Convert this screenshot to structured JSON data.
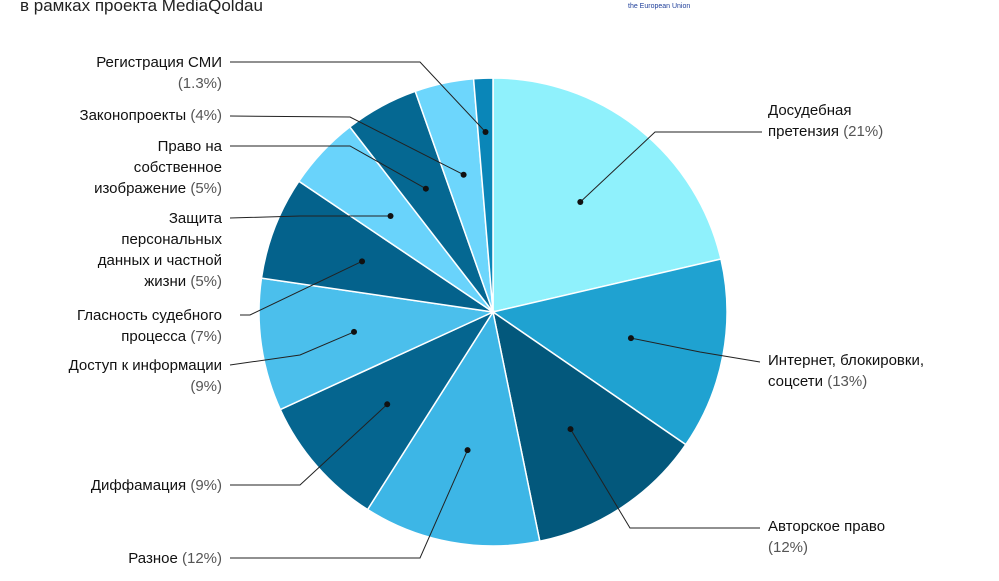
{
  "subtitle": "в рамках проекта MediaQoldau",
  "logo_text": "the European Union",
  "chart_data": {
    "type": "pie",
    "categories": [
      "Досудебная претензия",
      "Интернет, блокировки, соцсети",
      "Авторское право",
      "Разное",
      "Диффамация",
      "Доступ к информации",
      "Гласность судебного процесса",
      "Защита персональных данных и частной жизни",
      "Право на собственное изображение",
      "Законопроекты",
      "Регистрация СМИ"
    ],
    "values": [
      21,
      13,
      12,
      12,
      9,
      9,
      7,
      5,
      5,
      4,
      1.3
    ],
    "value_labels": [
      "(21%)",
      "(13%)",
      "(12%)",
      "(12%)",
      "(9%)",
      "(9%)",
      "(7%)",
      "(5%)",
      "(5%)",
      "(4%)",
      "(1.3%)"
    ],
    "colors": [
      "#8ff1fc",
      "#1fa2d1",
      "#03587c",
      "#3db6e6",
      "#05658f",
      "#4bbfec",
      "#04628c",
      "#69d3fb",
      "#056892",
      "#6dd6fc",
      "#0a86b8"
    ]
  }
}
